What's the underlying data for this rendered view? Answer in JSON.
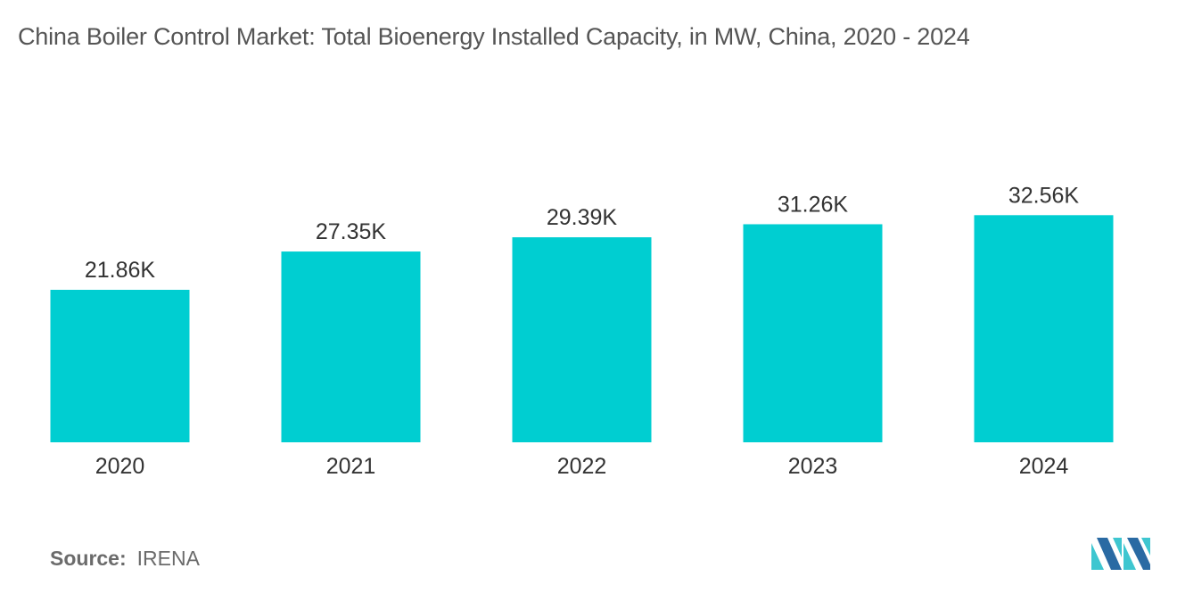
{
  "title": "China Boiler Control Market: Total Bioenergy Installed Capacity, in MW, China, 2020 - 2024",
  "source": {
    "label": "Source:",
    "value": "IRENA"
  },
  "colors": {
    "bar": "#00CED1",
    "label": "#333333",
    "logo_dark": "#2a6aa3",
    "logo_light": "#3ec6d0"
  },
  "chart_data": {
    "type": "bar",
    "title": "China Boiler Control Market: Total Bioenergy Installed Capacity, in MW, China, 2020 - 2024",
    "xlabel": "",
    "ylabel": "",
    "categories": [
      "2020",
      "2021",
      "2022",
      "2023",
      "2024"
    ],
    "values": [
      21860,
      27350,
      29390,
      31260,
      32560
    ],
    "value_labels": [
      "21.86K",
      "27.35K",
      "29.39K",
      "31.26K",
      "32.56K"
    ],
    "ylim": [
      0,
      40000
    ],
    "grid": false,
    "legend": "none",
    "units": "MW"
  }
}
